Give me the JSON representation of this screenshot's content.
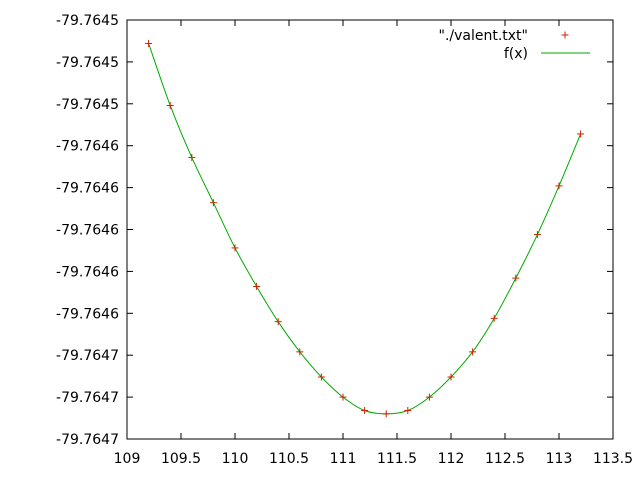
{
  "chart_data": {
    "type": "line",
    "title": "",
    "xlabel": "",
    "ylabel": "",
    "xlim": [
      109,
      113.5
    ],
    "ylim": [
      -79.76474,
      -79.76449
    ],
    "x_ticks": [
      {
        "value": 109,
        "label": "109"
      },
      {
        "value": 109.5,
        "label": "109.5"
      },
      {
        "value": 110,
        "label": "110"
      },
      {
        "value": 110.5,
        "label": "110.5"
      },
      {
        "value": 111,
        "label": "111"
      },
      {
        "value": 111.5,
        "label": "111.5"
      },
      {
        "value": 112,
        "label": "112"
      },
      {
        "value": 112.5,
        "label": "112.5"
      },
      {
        "value": 113,
        "label": "113"
      },
      {
        "value": 113.5,
        "label": "113.5"
      }
    ],
    "y_ticks": [
      {
        "value": -79.76449,
        "label": "-79.7645"
      },
      {
        "value": -79.764515,
        "label": "-79.7645"
      },
      {
        "value": -79.76454,
        "label": "-79.7645"
      },
      {
        "value": -79.764565,
        "label": "-79.7646"
      },
      {
        "value": -79.76459,
        "label": "-79.7646"
      },
      {
        "value": -79.764615,
        "label": "-79.7646"
      },
      {
        "value": -79.76464,
        "label": "-79.7646"
      },
      {
        "value": -79.764665,
        "label": "-79.7646"
      },
      {
        "value": -79.76469,
        "label": "-79.7647"
      },
      {
        "value": -79.764715,
        "label": "-79.7647"
      },
      {
        "value": -79.76474,
        "label": "-79.7647"
      }
    ],
    "grid": false,
    "legend_position": "top-right",
    "series": [
      {
        "name": "\"./valent.txt\"",
        "kind": "points",
        "marker": "plus",
        "color": "#cc2200",
        "x": [
          109.2,
          109.4,
          109.6,
          109.8,
          110.0,
          110.2,
          110.4,
          110.6,
          110.8,
          111.0,
          111.2,
          111.4,
          111.6,
          111.8,
          112.0,
          112.2,
          112.4,
          112.6,
          112.8,
          113.0,
          113.2
        ],
        "y": [
          -79.764504,
          -79.764541,
          -79.764572,
          -79.764599,
          -79.764626,
          -79.764649,
          -79.76467,
          -79.764688,
          -79.764703,
          -79.764715,
          -79.764723,
          -79.764725,
          -79.764723,
          -79.764715,
          -79.764703,
          -79.764688,
          -79.764668,
          -79.764644,
          -79.764618,
          -79.764589,
          -79.764558
        ]
      },
      {
        "name": "f(x)",
        "kind": "line",
        "color": "#00aa00",
        "x": [
          109.2,
          109.4,
          109.6,
          109.8,
          110.0,
          110.2,
          110.4,
          110.6,
          110.8,
          111.0,
          111.2,
          111.4,
          111.6,
          111.8,
          112.0,
          112.2,
          112.4,
          112.6,
          112.8,
          113.0,
          113.2
        ],
        "y": [
          -79.764504,
          -79.764541,
          -79.764572,
          -79.764599,
          -79.764626,
          -79.764649,
          -79.76467,
          -79.764688,
          -79.764703,
          -79.764715,
          -79.764723,
          -79.764725,
          -79.764723,
          -79.764715,
          -79.764703,
          -79.764688,
          -79.764668,
          -79.764644,
          -79.764618,
          -79.764589,
          -79.764558
        ]
      }
    ]
  }
}
